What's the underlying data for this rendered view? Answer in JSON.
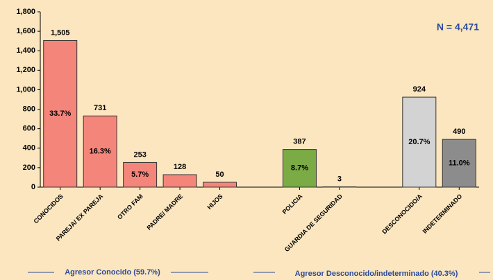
{
  "chart_data": {
    "type": "bar",
    "categories": [
      "CONOCIDOS",
      "PAREJA/ EX PAREJA",
      "OTRO FAM",
      "PADRE/ MADRE",
      "HIJOS",
      null,
      "POLICIA",
      "GUARDIA DE SEGURIDAD",
      null,
      "DESCONOCIDO/A",
      "INDETERMINADO"
    ],
    "values": [
      1505,
      731,
      253,
      128,
      50,
      null,
      387,
      3,
      null,
      924,
      490
    ],
    "value_labels": [
      "1,505",
      "731",
      "253",
      "128",
      "50",
      null,
      "387",
      "3",
      null,
      "924",
      "490"
    ],
    "percents": [
      33.7,
      16.3,
      5.7,
      null,
      null,
      null,
      8.7,
      null,
      null,
      20.7,
      11.0
    ],
    "percent_labels": [
      "33.7%",
      "16.3%",
      "5.7%",
      null,
      null,
      null,
      "8.7%",
      null,
      null,
      "20.7%",
      "11.0%"
    ],
    "colors": [
      "#f4857b",
      "#f4857b",
      "#f4857b",
      "#f4857b",
      "#f4857b",
      null,
      "#7aab45",
      "#7aab45",
      null,
      "#d3d3d3",
      "#8c8c8c"
    ],
    "ylim": [
      0,
      1800
    ],
    "yticks": [
      0,
      200,
      400,
      600,
      800,
      {
        "value": 1000,
        "label": "1,000"
      },
      {
        "value": 1200,
        "label": "1,200"
      },
      {
        "value": 1400,
        "label": "1,400"
      },
      {
        "value": 1600,
        "label": "1,600"
      },
      {
        "value": 1800,
        "label": "1,800"
      }
    ],
    "grid": false,
    "annotations": [
      "N = 4,471",
      "Agresor Conocido (59.7%)",
      "Agresor Desconocido/indeterminado (40.3%)"
    ]
  }
}
